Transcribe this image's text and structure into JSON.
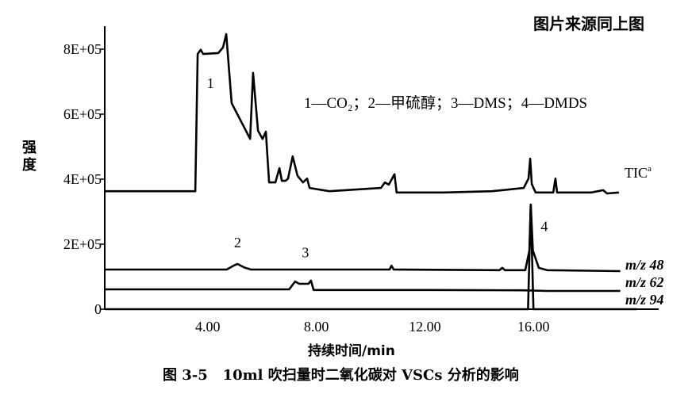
{
  "source_note": "图片来源同上图",
  "caption": "图 3-5   10ml 吹扫量时二氧化碳对 VSCs 分析的影响",
  "chart_data": {
    "type": "line",
    "title": "",
    "xlabel": "持续时间/min",
    "ylabel": "强度",
    "xlim": [
      0.2,
      19.8
    ],
    "ylim": [
      0,
      880000
    ],
    "x_ticks": [
      {
        "value": 4,
        "label": "4.00"
      },
      {
        "value": 8,
        "label": "8.00"
      },
      {
        "value": 12,
        "label": "12.00"
      },
      {
        "value": 16,
        "label": "16.00"
      }
    ],
    "y_ticks": [
      {
        "value": 0,
        "label": "0"
      },
      {
        "value": 200000,
        "label": "2E+05"
      },
      {
        "value": 400000,
        "label": "4E+05"
      },
      {
        "value": 600000,
        "label": "6E+05"
      },
      {
        "value": 800000,
        "label": "8E+05"
      }
    ],
    "grid": false,
    "legend_text": "1—CO₂；2—甲硫醇；3—DMS；4—DMDS",
    "peak_labels": [
      {
        "label": "1",
        "x": 4.1,
        "y": 680000
      },
      {
        "label": "2",
        "x": 5.1,
        "y": 190000
      },
      {
        "label": "3",
        "x": 7.6,
        "y": 160000
      },
      {
        "label": "4",
        "x": 16.4,
        "y": 240000
      }
    ],
    "series": [
      {
        "name": "TIC",
        "name_sup": "a",
        "color": "#000000",
        "points": [
          [
            0.23,
            363000
          ],
          [
            3.54,
            363000
          ],
          [
            3.63,
            785000
          ],
          [
            3.74,
            798000
          ],
          [
            3.83,
            785000
          ],
          [
            4.39,
            788000
          ],
          [
            4.56,
            805000
          ],
          [
            4.68,
            846000
          ],
          [
            4.88,
            634000
          ],
          [
            5.56,
            524000
          ],
          [
            5.67,
            727000
          ],
          [
            5.85,
            549000
          ],
          [
            6.02,
            524000
          ],
          [
            6.14,
            546000
          ],
          [
            6.26,
            390000
          ],
          [
            6.49,
            390000
          ],
          [
            6.64,
            434000
          ],
          [
            6.73,
            395000
          ],
          [
            6.87,
            395000
          ],
          [
            6.96,
            402000
          ],
          [
            7.13,
            470000
          ],
          [
            7.31,
            410000
          ],
          [
            7.51,
            390000
          ],
          [
            7.66,
            402000
          ],
          [
            7.75,
            373000
          ],
          [
            8.48,
            363000
          ],
          [
            10.38,
            373000
          ],
          [
            10.53,
            390000
          ],
          [
            10.67,
            383000
          ],
          [
            10.88,
            415000
          ],
          [
            10.96,
            359000
          ],
          [
            12.72,
            359000
          ],
          [
            14.47,
            363000
          ],
          [
            15.64,
            373000
          ],
          [
            15.82,
            402000
          ],
          [
            15.88,
            463000
          ],
          [
            15.94,
            385000
          ],
          [
            16.08,
            359000
          ],
          [
            16.73,
            359000
          ],
          [
            16.81,
            402000
          ],
          [
            16.87,
            359000
          ],
          [
            18.13,
            359000
          ],
          [
            18.57,
            366000
          ],
          [
            18.71,
            356000
          ],
          [
            19.15,
            359000
          ]
        ]
      },
      {
        "name": "m/z 48",
        "color": "#000000",
        "points": [
          [
            0.23,
            122000
          ],
          [
            4.7,
            122000
          ],
          [
            4.95,
            134000
          ],
          [
            5.1,
            139000
          ],
          [
            5.35,
            128000
          ],
          [
            5.6,
            122000
          ],
          [
            10.7,
            122000
          ],
          [
            10.77,
            134000
          ],
          [
            10.85,
            122000
          ],
          [
            14.75,
            120000
          ],
          [
            14.85,
            127000
          ],
          [
            14.95,
            120000
          ],
          [
            15.7,
            120000
          ],
          [
            15.85,
            180000
          ],
          [
            15.9,
            322000
          ],
          [
            15.98,
            180000
          ],
          [
            16.2,
            127000
          ],
          [
            16.5,
            120000
          ],
          [
            19.2,
            117000
          ]
        ]
      },
      {
        "name": "m/z 62",
        "color": "#000000",
        "points": [
          [
            0.23,
            61000
          ],
          [
            7.0,
            61000
          ],
          [
            7.22,
            85000
          ],
          [
            7.37,
            78000
          ],
          [
            7.71,
            78000
          ],
          [
            7.8,
            88000
          ],
          [
            7.9,
            59000
          ],
          [
            12.3,
            59000
          ],
          [
            15.6,
            58000
          ],
          [
            16.5,
            56000
          ],
          [
            19.2,
            56000
          ]
        ]
      },
      {
        "name": "m/z 94",
        "color": "#000000",
        "points": [
          [
            0.23,
            0
          ],
          [
            15.7,
            0
          ],
          [
            15.8,
            0
          ],
          [
            15.9,
            322000
          ],
          [
            16.0,
            0
          ],
          [
            16.1,
            0
          ],
          [
            19.8,
            0
          ]
        ]
      }
    ]
  }
}
